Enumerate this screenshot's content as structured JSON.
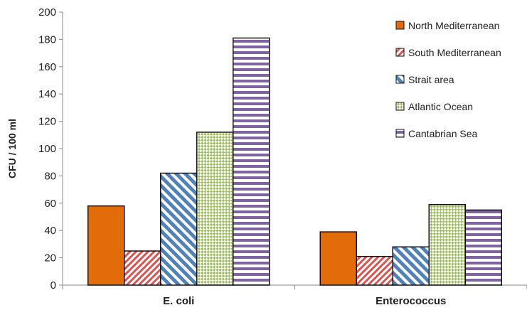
{
  "chart_data": {
    "type": "bar",
    "categories": [
      "E. coli",
      "Enterococcus"
    ],
    "ylabel": "CFU / 100 ml",
    "xlabel": "",
    "ylim": [
      0,
      200
    ],
    "ytick_step": 20,
    "grid": false,
    "legend_position": "top-right",
    "series": [
      {
        "name": "North Mediterranean",
        "values": [
          58,
          39
        ],
        "color": "#E36C0A",
        "pattern": "solid"
      },
      {
        "name": "South Mediterranean",
        "values": [
          25,
          21
        ],
        "color": "#D9534F",
        "pattern": "diag-up"
      },
      {
        "name": "Strait area",
        "values": [
          82,
          28
        ],
        "color": "#4F81BD",
        "pattern": "diag-down"
      },
      {
        "name": "Atlantic Ocean",
        "values": [
          112,
          59
        ],
        "color": "#9BBB59",
        "pattern": "check"
      },
      {
        "name": "Cantabrian Sea",
        "values": [
          181,
          55
        ],
        "color": "#8064A2",
        "pattern": "horiz"
      }
    ]
  }
}
